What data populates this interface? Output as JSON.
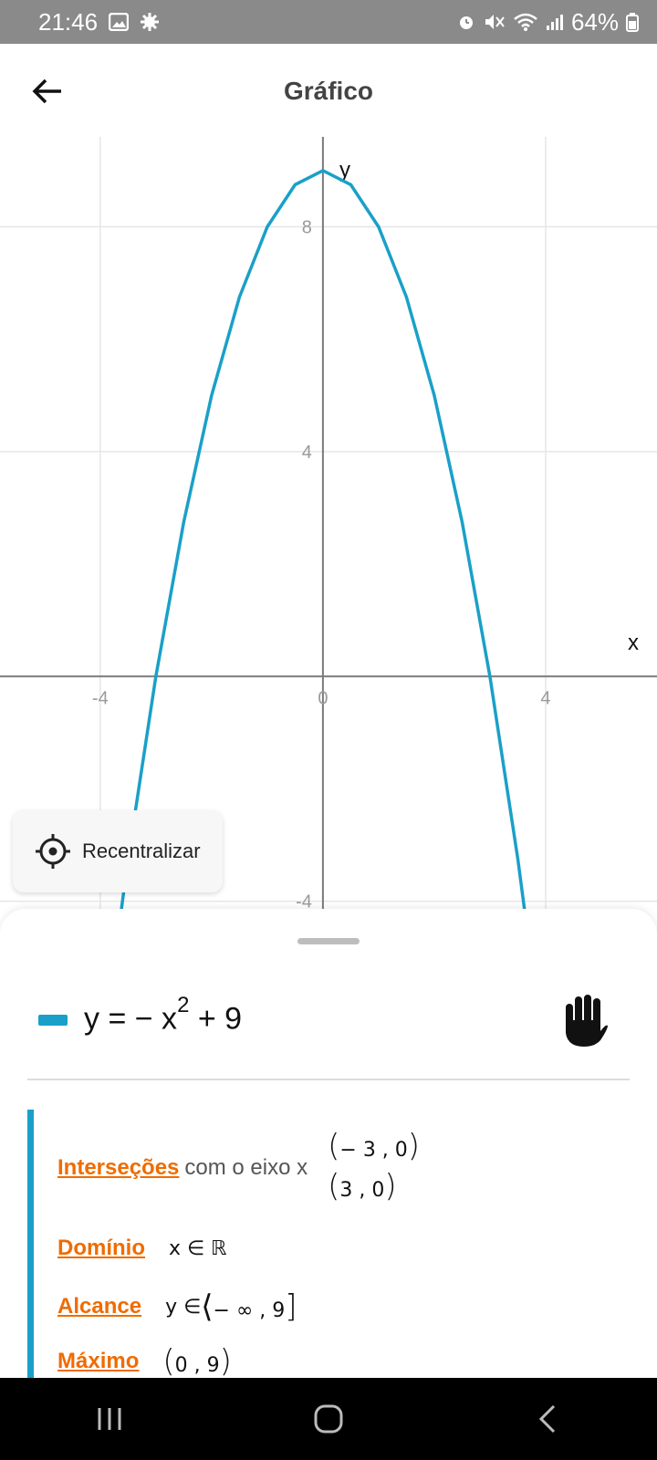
{
  "status_bar": {
    "time": "21:46",
    "battery": "64%",
    "icons": [
      "gallery-icon",
      "settings-icon",
      "alarm-icon",
      "mute-icon",
      "wifi-icon",
      "signal-icon",
      "battery-icon"
    ]
  },
  "header": {
    "title": "Gráfico",
    "back_icon": "arrow-left-icon"
  },
  "graph": {
    "x_label": "x",
    "y_label": "y",
    "x_ticks": [
      "-4",
      "0",
      "4"
    ],
    "y_ticks": [
      "8",
      "4",
      "-4"
    ],
    "curve_color": "#1aa0c8"
  },
  "chart_data": {
    "type": "line",
    "title": "",
    "xlabel": "x",
    "ylabel": "y",
    "xlim": [
      -5.8,
      6.0
    ],
    "ylim": [
      -4.2,
      9.6
    ],
    "x_ticks": [
      -4,
      0,
      4
    ],
    "y_ticks": [
      -4,
      4,
      8
    ],
    "grid": true,
    "series": [
      {
        "color": "#1aa0c8",
        "x": [
          -4,
          -3.5,
          -3,
          -2.5,
          -2,
          -1.5,
          -1,
          -0.5,
          0,
          0.5,
          1,
          1.5,
          2,
          2.5,
          3,
          3.5,
          4
        ],
        "y": [
          -7,
          -3.25,
          0,
          2.75,
          5,
          6.75,
          8,
          8.75,
          9,
          8.75,
          8,
          6.75,
          5,
          2.75,
          0,
          -3.25,
          -7
        ]
      }
    ]
  },
  "recenter": {
    "label": "Recentralizar",
    "icon": "crosshair-icon"
  },
  "equation": {
    "lhs": "y = − x",
    "exponent": "2",
    "rhs": "+ 9",
    "swatch_color": "#1aa0c8",
    "hand_icon": "hand-icon"
  },
  "properties": {
    "intersections": {
      "label": "Interseções",
      "suffix": "com o eixo x",
      "points": [
        "− 3 , 0",
        "3 , 0"
      ]
    },
    "domain": {
      "label": "Domínio",
      "value": "x ∈ ℝ"
    },
    "range": {
      "label": "Alcance",
      "prefix": "y ∈",
      "value": "− ∞ , 9"
    },
    "maximum": {
      "label": "Máximo",
      "value": "0 , 9"
    }
  },
  "nav_bar": {
    "icons": [
      "recents-icon",
      "home-icon",
      "back-icon"
    ]
  }
}
